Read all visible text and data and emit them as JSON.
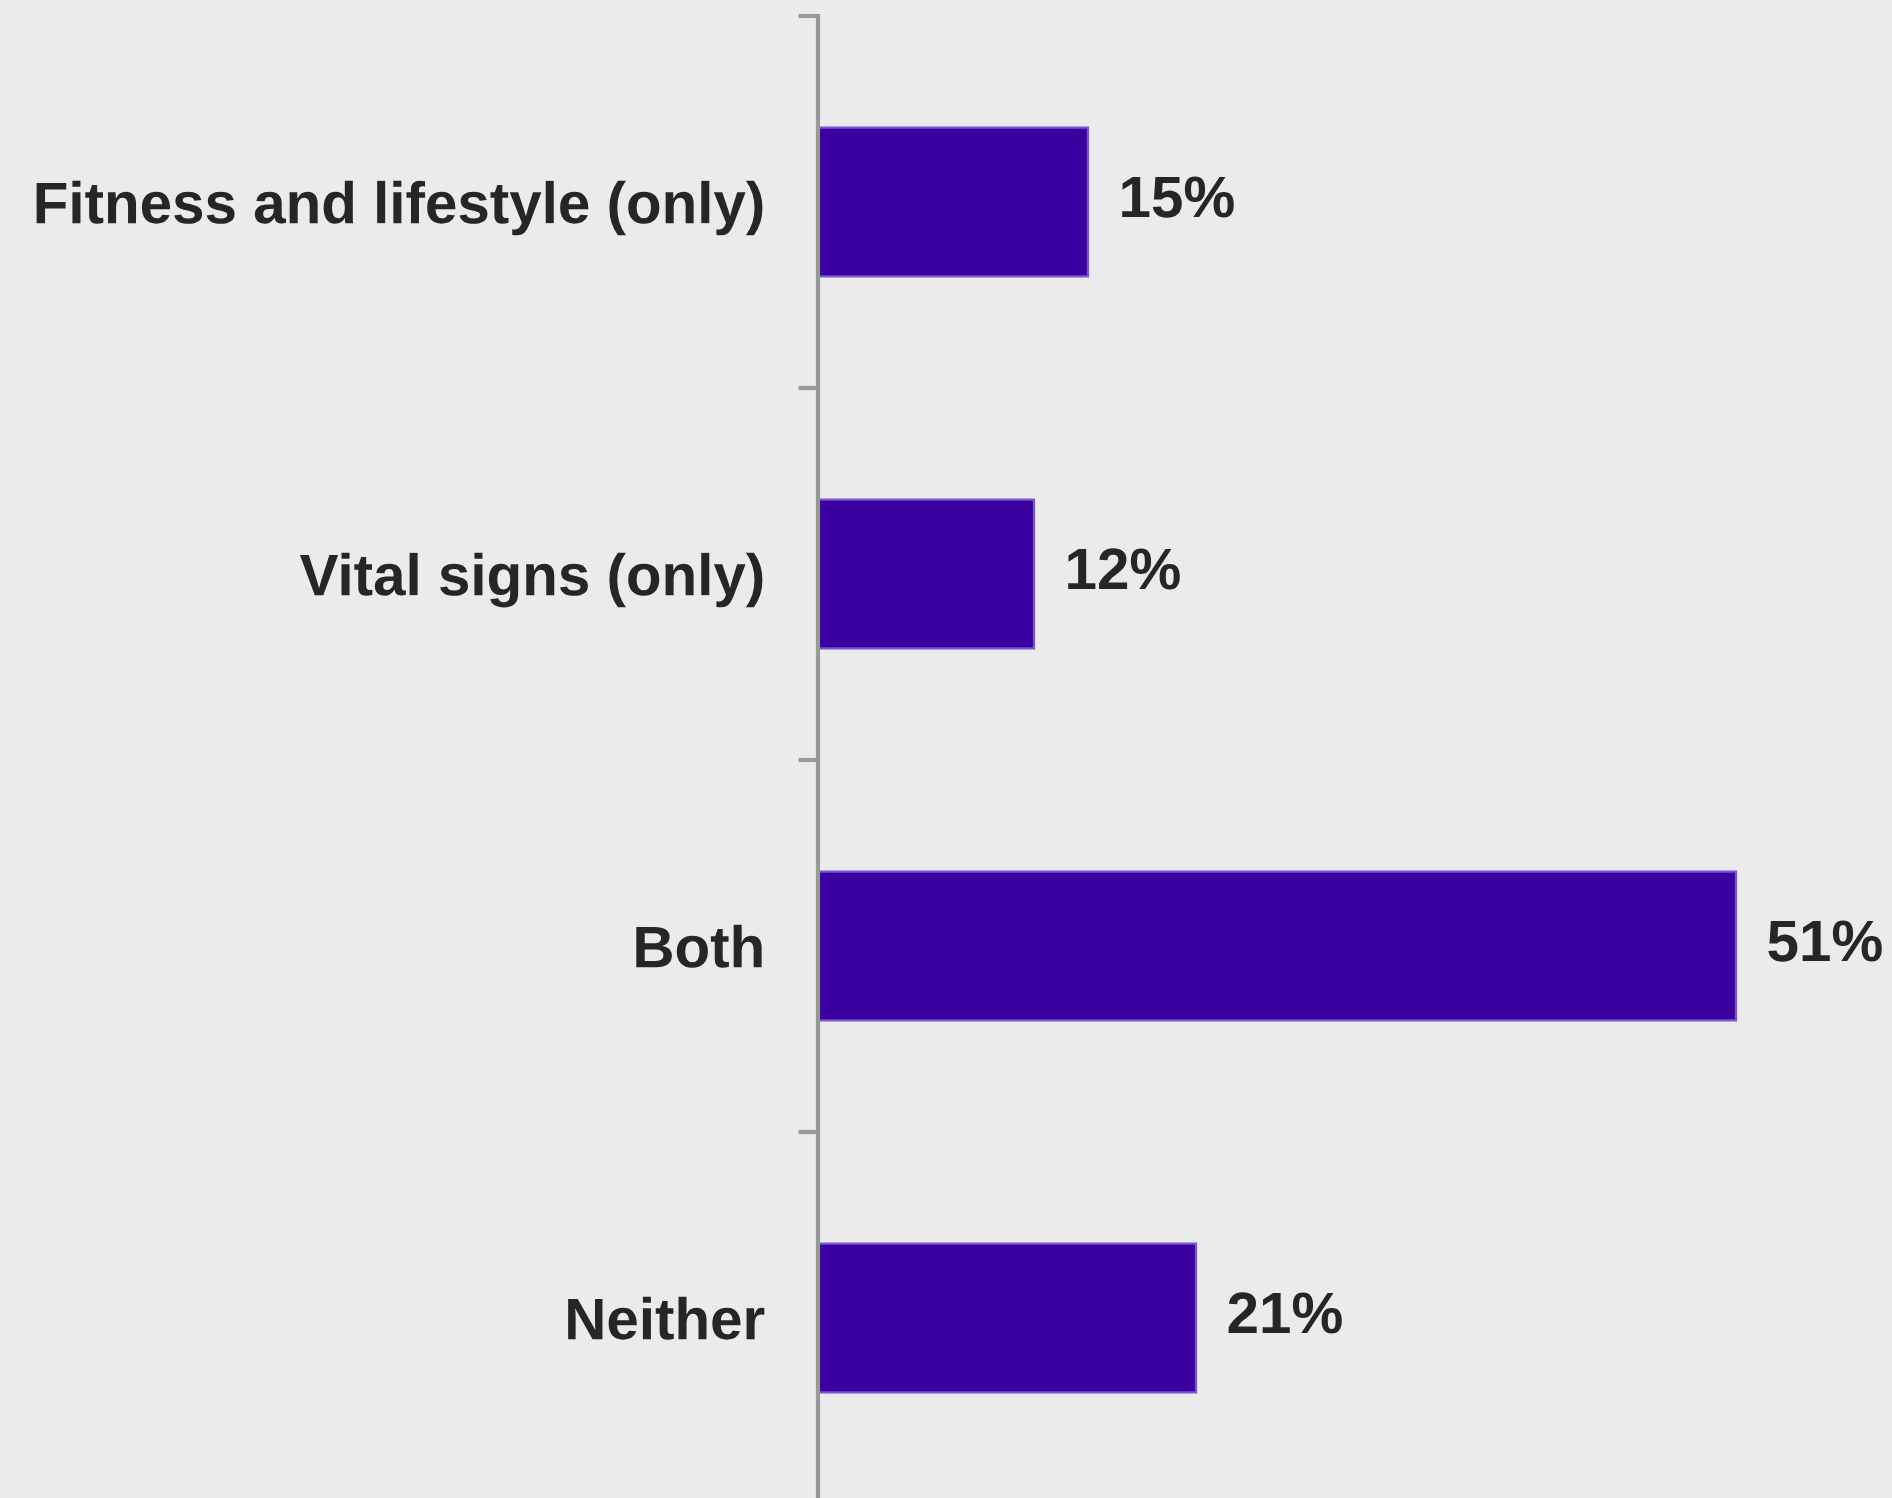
{
  "chart_data": {
    "type": "bar",
    "orientation": "horizontal",
    "categories": [
      "Fitness and lifestyle (only)",
      "Vital signs (only)",
      "Both",
      "Neither"
    ],
    "values": [
      15,
      12,
      51,
      21
    ],
    "color": "#3a00a0",
    "value_labels": [
      "15%",
      "12%",
      "51%",
      "21%"
    ],
    "tick_labels": "y"
  }
}
